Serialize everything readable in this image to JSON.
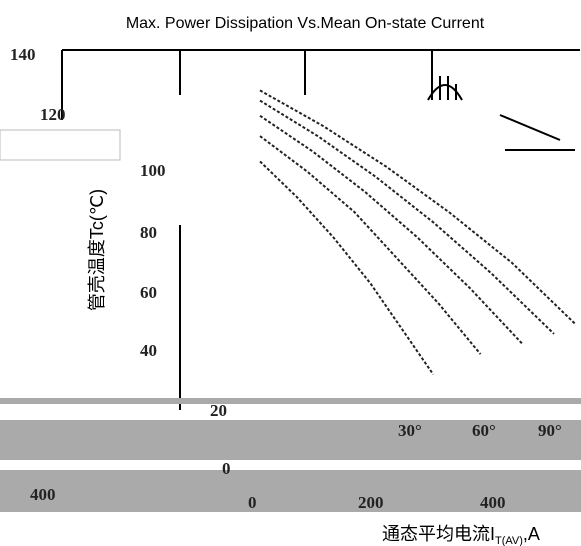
{
  "chart_data": {
    "type": "line",
    "title": "Max. Power Dissipation Vs.Mean On-state Current",
    "ylabel": "管壳温度Tc(℃)",
    "xlabel": "通态平均电流I",
    "xlabel_sub": "T(AV)",
    "xlabel_unit": ",A",
    "y_ticks": [
      "140",
      "120",
      "100",
      "80",
      "60",
      "40",
      "20",
      "0"
    ],
    "x_ticks": [
      "400",
      "0",
      "200",
      "400"
    ],
    "ylim": [
      0,
      140
    ],
    "series": [
      {
        "name": "30°",
        "x": [
          0,
          70,
          140,
          210,
          270,
          330
        ],
        "y": [
          100,
          86,
          70,
          52,
          34,
          16
        ]
      },
      {
        "name": "60°",
        "x": [
          0,
          90,
          180,
          260,
          340,
          420
        ],
        "y": [
          110,
          96,
          80,
          62,
          44,
          24
        ]
      },
      {
        "name": "90°",
        "x": [
          0,
          100,
          200,
          300,
          400,
          500
        ],
        "y": [
          118,
          104,
          88,
          70,
          50,
          28
        ]
      },
      {
        "name": "",
        "x": [
          0,
          110,
          220,
          330,
          440,
          560
        ],
        "y": [
          124,
          110,
          94,
          76,
          56,
          32
        ]
      },
      {
        "name": "",
        "x": [
          0,
          120,
          240,
          360,
          480,
          600
        ],
        "y": [
          128,
          114,
          98,
          80,
          60,
          36
        ]
      }
    ],
    "annotations": [
      "30°",
      "60°",
      "90°"
    ],
    "grid": false
  },
  "colors": {
    "line": "#222222",
    "fill": "#aaaaaa",
    "axis": "#000000"
  }
}
